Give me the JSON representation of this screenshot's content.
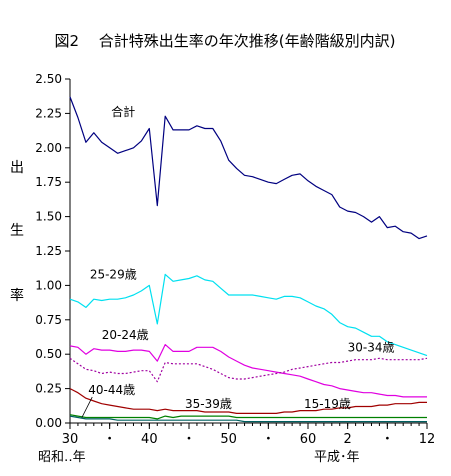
{
  "chart_data": {
    "type": "line",
    "title": "図2　 合計特殊出生率の年次推移(年齢階級別内訳)",
    "ylabel_chars": [
      "出",
      "生",
      "率"
    ],
    "ylim": [
      0,
      2.5
    ],
    "yticks": [
      "0.00",
      "0.25",
      "0.50",
      "0.75",
      "1.00",
      "1.25",
      "1.50",
      "1.75",
      "2.00",
      "2.25",
      "2.50"
    ],
    "xticks": [
      {
        "year": 1955,
        "label": "30"
      },
      {
        "year": 1960,
        "label": "・"
      },
      {
        "year": 1965,
        "label": "40"
      },
      {
        "year": 1970,
        "label": "・"
      },
      {
        "year": 1975,
        "label": "50"
      },
      {
        "year": 1980,
        "label": "・"
      },
      {
        "year": 1985,
        "label": "60"
      },
      {
        "year": 1990,
        "label": "2"
      },
      {
        "year": 1995,
        "label": "・"
      },
      {
        "year": 2000,
        "label": "12"
      }
    ],
    "era_left": "昭和‥年",
    "era_right": "平成･年",
    "xlim": [
      1955,
      2000
    ],
    "years": [
      1955,
      1956,
      1957,
      1958,
      1959,
      1960,
      1961,
      1962,
      1963,
      1964,
      1965,
      1966,
      1967,
      1968,
      1969,
      1970,
      1971,
      1972,
      1973,
      1974,
      1975,
      1976,
      1977,
      1978,
      1979,
      1980,
      1981,
      1982,
      1983,
      1984,
      1985,
      1986,
      1987,
      1988,
      1989,
      1990,
      1991,
      1992,
      1993,
      1994,
      1995,
      1996,
      1997,
      1998,
      1999,
      2000
    ],
    "series": [
      {
        "name": "合計",
        "color": "#000080",
        "dashed": false,
        "label_year": 1960.2,
        "label_value": 2.23,
        "values": [
          2.37,
          2.22,
          2.04,
          2.11,
          2.04,
          2.0,
          1.96,
          1.98,
          2.0,
          2.05,
          2.14,
          1.58,
          2.23,
          2.13,
          2.13,
          2.13,
          2.16,
          2.14,
          2.14,
          2.05,
          1.91,
          1.85,
          1.8,
          1.79,
          1.77,
          1.75,
          1.74,
          1.77,
          1.8,
          1.81,
          1.76,
          1.72,
          1.69,
          1.66,
          1.57,
          1.54,
          1.53,
          1.5,
          1.46,
          1.5,
          1.42,
          1.43,
          1.39,
          1.38,
          1.34,
          1.36
        ]
      },
      {
        "name": "25-29歳",
        "color": "#00e0f0",
        "dashed": false,
        "label_year": 1957.5,
        "label_value": 1.05,
        "values": [
          0.9,
          0.88,
          0.84,
          0.9,
          0.89,
          0.9,
          0.9,
          0.91,
          0.93,
          0.96,
          1.0,
          0.72,
          1.08,
          1.03,
          1.04,
          1.05,
          1.07,
          1.04,
          1.03,
          0.98,
          0.93,
          0.93,
          0.93,
          0.93,
          0.92,
          0.91,
          0.9,
          0.92,
          0.92,
          0.91,
          0.88,
          0.85,
          0.83,
          0.79,
          0.73,
          0.7,
          0.69,
          0.66,
          0.63,
          0.63,
          0.59,
          0.57,
          0.55,
          0.53,
          0.51,
          0.49
        ]
      },
      {
        "name": "20-24歳",
        "color": "#e000e0",
        "dashed": false,
        "label_year": 1959.0,
        "label_value": 0.61,
        "values": [
          0.56,
          0.55,
          0.5,
          0.54,
          0.53,
          0.53,
          0.52,
          0.52,
          0.53,
          0.53,
          0.52,
          0.45,
          0.57,
          0.52,
          0.52,
          0.52,
          0.55,
          0.55,
          0.55,
          0.52,
          0.48,
          0.45,
          0.42,
          0.4,
          0.39,
          0.38,
          0.37,
          0.36,
          0.35,
          0.34,
          0.32,
          0.3,
          0.28,
          0.27,
          0.25,
          0.24,
          0.23,
          0.22,
          0.22,
          0.21,
          0.2,
          0.2,
          0.19,
          0.19,
          0.19,
          0.19
        ]
      },
      {
        "name": "30-34歳",
        "color": "#a000a0",
        "dashed": true,
        "label_year": 1990.0,
        "label_value": 0.52,
        "values": [
          0.47,
          0.43,
          0.39,
          0.38,
          0.36,
          0.37,
          0.36,
          0.36,
          0.37,
          0.38,
          0.38,
          0.3,
          0.44,
          0.43,
          0.43,
          0.43,
          0.43,
          0.41,
          0.39,
          0.36,
          0.33,
          0.32,
          0.32,
          0.33,
          0.34,
          0.35,
          0.36,
          0.37,
          0.39,
          0.4,
          0.41,
          0.42,
          0.43,
          0.44,
          0.44,
          0.45,
          0.46,
          0.46,
          0.46,
          0.47,
          0.46,
          0.46,
          0.46,
          0.46,
          0.46,
          0.47
        ]
      },
      {
        "name": "35-39歳",
        "color": "#008000",
        "dashed": false,
        "label_year": 1969.5,
        "label_value": 0.11,
        "values": [
          0.06,
          0.05,
          0.04,
          0.04,
          0.04,
          0.04,
          0.04,
          0.04,
          0.04,
          0.04,
          0.04,
          0.03,
          0.05,
          0.04,
          0.05,
          0.05,
          0.05,
          0.05,
          0.05,
          0.05,
          0.05,
          0.04,
          0.04,
          0.04,
          0.04,
          0.04,
          0.04,
          0.04,
          0.04,
          0.04,
          0.04,
          0.04,
          0.04,
          0.04,
          0.04,
          0.04,
          0.04,
          0.04,
          0.04,
          0.04,
          0.04,
          0.04,
          0.04,
          0.04,
          0.04,
          0.04
        ]
      },
      {
        "name": "15-19歳",
        "color": "#a00000",
        "dashed": false,
        "label_year": 1984.5,
        "label_value": 0.11,
        "values": [
          0.25,
          0.22,
          0.18,
          0.16,
          0.14,
          0.13,
          0.12,
          0.11,
          0.1,
          0.1,
          0.1,
          0.09,
          0.1,
          0.09,
          0.09,
          0.09,
          0.09,
          0.08,
          0.08,
          0.08,
          0.08,
          0.07,
          0.07,
          0.07,
          0.07,
          0.07,
          0.07,
          0.08,
          0.08,
          0.09,
          0.09,
          0.09,
          0.1,
          0.1,
          0.11,
          0.11,
          0.12,
          0.12,
          0.12,
          0.13,
          0.13,
          0.14,
          0.14,
          0.14,
          0.15,
          0.15
        ]
      },
      {
        "name": "40-44歳",
        "color": "#006060",
        "dashed": false,
        "label_year": 1957.3,
        "label_value": 0.21,
        "values": [
          0.05,
          0.04,
          0.03,
          0.03,
          0.03,
          0.03,
          0.02,
          0.02,
          0.02,
          0.02,
          0.02,
          0.02,
          0.02,
          0.02,
          0.02,
          0.02,
          0.02,
          0.02,
          0.02,
          0.02,
          0.02,
          0.02,
          0.01,
          0.01,
          0.01,
          0.01,
          0.01,
          0.01,
          0.01,
          0.01,
          0.01,
          0.01,
          0.01,
          0.01,
          0.01,
          0.01,
          0.01,
          0.01,
          0.01,
          0.01,
          0.01,
          0.01,
          0.01,
          0.01,
          0.01,
          0.01
        ]
      }
    ]
  }
}
